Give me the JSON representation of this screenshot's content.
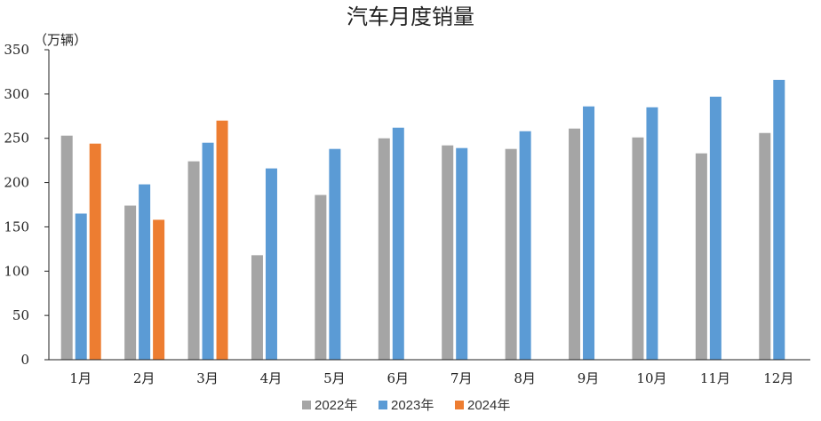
{
  "chart_data": {
    "type": "bar",
    "title": "汽车月度销量",
    "unit_label": "（万辆）",
    "xlabel": "",
    "ylabel": "",
    "ylim": [
      0,
      350
    ],
    "yticks": [
      0,
      50,
      100,
      150,
      200,
      250,
      300,
      350
    ],
    "categories": [
      "1月",
      "2月",
      "3月",
      "4月",
      "5月",
      "6月",
      "7月",
      "8月",
      "9月",
      "10月",
      "11月",
      "12月"
    ],
    "series": [
      {
        "name": "2022年",
        "color": "#a5a5a5",
        "values": [
          253,
          174,
          224,
          118,
          186,
          250,
          242,
          238,
          261,
          251,
          233,
          256
        ]
      },
      {
        "name": "2023年",
        "color": "#5b9bd5",
        "values": [
          165,
          198,
          245,
          216,
          238,
          262,
          239,
          258,
          286,
          285,
          297,
          316
        ]
      },
      {
        "name": "2024年",
        "color": "#ed7d31",
        "values": [
          244,
          158,
          270,
          null,
          null,
          null,
          null,
          null,
          null,
          null,
          null,
          null
        ]
      }
    ],
    "legend": "bottom",
    "grid": false
  }
}
